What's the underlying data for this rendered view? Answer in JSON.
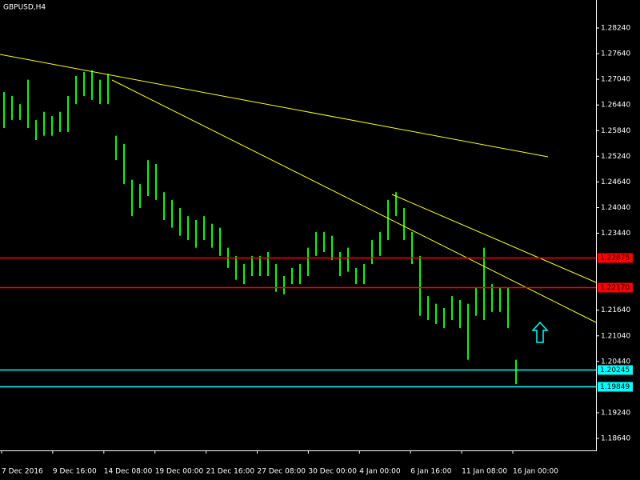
{
  "chart_data": {
    "type": "hl-bars",
    "title": "GBPUSD,H4",
    "color": "#00ff00",
    "high": [
      1.2674,
      1.2665,
      1.2646,
      1.2703,
      1.2609,
      1.2628,
      1.2618,
      1.2628,
      1.2665,
      1.2712,
      1.2721,
      1.2725,
      1.2703,
      1.2717,
      1.2572,
      1.2553,
      1.2469,
      1.2459,
      1.2515,
      1.2506,
      1.244,
      1.2422,
      1.2403,
      1.2384,
      1.2375,
      1.2384,
      1.2366,
      1.2357,
      1.231,
      1.2291,
      1.2272,
      1.2291,
      1.2291,
      1.23,
      1.2272,
      1.2244,
      1.2263,
      1.2272,
      1.231,
      1.2347,
      1.2347,
      1.2338,
      1.23,
      1.231,
      1.2263,
      1.2272,
      1.2328,
      1.2347,
      1.2422,
      1.244,
      1.2403,
      1.2347,
      1.2291,
      1.2197,
      1.2179,
      1.2169,
      1.2197,
      1.2188,
      1.2179,
      1.2216,
      1.231,
      1.2225,
      1.2216,
      1.2216,
      1.2048
    ],
    "low": [
      1.259,
      1.2609,
      1.2609,
      1.259,
      1.2562,
      1.2572,
      1.2572,
      1.2581,
      1.2581,
      1.2646,
      1.2665,
      1.2656,
      1.2646,
      1.2646,
      1.2515,
      1.2459,
      1.2384,
      1.2403,
      1.2431,
      1.2422,
      1.2375,
      1.2357,
      1.2338,
      1.2328,
      1.231,
      1.2328,
      1.231,
      1.2291,
      1.2263,
      1.2235,
      1.2225,
      1.2244,
      1.2244,
      1.2244,
      1.2207,
      1.2201,
      1.2225,
      1.2225,
      1.2244,
      1.2291,
      1.23,
      1.2281,
      1.2244,
      1.2254,
      1.2225,
      1.2225,
      1.2272,
      1.2291,
      1.2328,
      1.2384,
      1.2328,
      1.2272,
      1.2151,
      1.2141,
      1.2132,
      1.2122,
      1.2141,
      1.2122,
      1.2048,
      1.2151,
      1.2141,
      1.216,
      1.216,
      1.2122,
      1.1991
    ],
    "ylim": [
      1.1836,
      1.28895
    ],
    "yticks": [
      {
        "value": 1.2824,
        "label": "1.28240"
      },
      {
        "value": 1.2764,
        "label": "1.27640"
      },
      {
        "value": 1.2704,
        "label": "1.27040"
      },
      {
        "value": 1.2644,
        "label": "1.26440"
      },
      {
        "value": 1.2584,
        "label": "1.25840"
      },
      {
        "value": 1.2524,
        "label": "1.25240"
      },
      {
        "value": 1.2464,
        "label": "1.24640"
      },
      {
        "value": 1.2404,
        "label": "1.24040"
      },
      {
        "value": 1.2344,
        "label": "1.23440"
      },
      {
        "value": 1.2164,
        "label": "1.21640"
      },
      {
        "value": 1.2104,
        "label": "1.21040"
      },
      {
        "value": 1.2044,
        "label": "1.20440"
      },
      {
        "value": 1.1924,
        "label": "1.19240"
      },
      {
        "value": 1.1864,
        "label": "1.18640"
      }
    ],
    "levels": [
      {
        "value": 1.22875,
        "color": "#ff0000"
      },
      {
        "value": 1.2217,
        "label": "1.22170",
        "color": "#ff0000"
      },
      {
        "value": 1.20245,
        "color": "#00ffff"
      },
      {
        "value": 1.19849,
        "color": "#00ffff"
      }
    ],
    "xlabels": [
      "7 Dec 2016",
      "9 Dec 16:00",
      "14 Dec 08:00",
      "19 Dec 00:00",
      "21 Dec 16:00",
      "27 Dec 08:00",
      "30 Dec 00:00",
      "4 Jan 00:00",
      "6 Jan 16:00",
      "11 Jan 08:00",
      "16 Jan 00:00"
    ]
  }
}
